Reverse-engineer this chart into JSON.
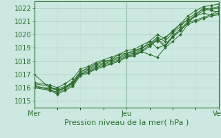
{
  "title": "",
  "xlabel": "Pression niveau de la mer( hPa )",
  "ylabel": "",
  "bg_color": "#cce8e0",
  "grid_color_major": "#a8cfc4",
  "grid_color_minor": "#bcddd6",
  "line_color": "#2d6e2d",
  "ylim": [
    1014.5,
    1022.5
  ],
  "yticks": [
    1015,
    1016,
    1017,
    1018,
    1019,
    1020,
    1021,
    1022
  ],
  "xtick_labels": [
    "Mer",
    "Jeu",
    "Ven"
  ],
  "xtick_pos": [
    0,
    48,
    96
  ],
  "x_total": 96,
  "series": [
    [
      0,
      1017.0,
      8,
      1016.0,
      12,
      1015.8,
      16,
      1016.0,
      20,
      1016.3,
      24,
      1017.2,
      28,
      1017.5,
      32,
      1017.8,
      36,
      1018.0,
      40,
      1018.1,
      44,
      1018.5,
      48,
      1018.6,
      52,
      1018.8,
      56,
      1019.0,
      60,
      1019.3,
      64,
      1019.5,
      68,
      1019.8,
      72,
      1020.2,
      76,
      1020.8,
      80,
      1021.1,
      84,
      1021.4,
      88,
      1021.6,
      92,
      1021.5,
      96,
      1021.6
    ],
    [
      0,
      1016.0,
      8,
      1016.0,
      12,
      1015.9,
      16,
      1016.1,
      20,
      1016.3,
      24,
      1017.0,
      28,
      1017.2,
      32,
      1017.4,
      36,
      1017.6,
      40,
      1017.8,
      44,
      1018.0,
      48,
      1018.3,
      52,
      1018.5,
      56,
      1018.7,
      60,
      1018.5,
      64,
      1018.3,
      68,
      1019.0,
      72,
      1019.5,
      76,
      1020.0,
      80,
      1020.8,
      84,
      1021.0,
      88,
      1021.2,
      92,
      1021.4,
      96,
      1021.5
    ],
    [
      0,
      1016.2,
      8,
      1015.8,
      12,
      1015.7,
      16,
      1016.0,
      20,
      1016.4,
      24,
      1017.1,
      28,
      1017.3,
      32,
      1017.6,
      36,
      1017.8,
      40,
      1018.0,
      44,
      1018.2,
      48,
      1018.5,
      52,
      1018.6,
      56,
      1018.9,
      60,
      1019.5,
      64,
      1019.0,
      68,
      1019.2,
      72,
      1019.8,
      76,
      1020.3,
      80,
      1020.9,
      84,
      1021.1,
      88,
      1021.3,
      92,
      1021.5,
      96,
      1021.8
    ],
    [
      0,
      1016.1,
      8,
      1015.9,
      12,
      1015.6,
      16,
      1015.9,
      20,
      1016.2,
      24,
      1017.0,
      28,
      1017.2,
      32,
      1017.5,
      36,
      1017.7,
      40,
      1017.9,
      44,
      1018.1,
      48,
      1018.4,
      52,
      1018.5,
      56,
      1018.8,
      60,
      1019.2,
      64,
      1019.7,
      68,
      1019.2,
      72,
      1019.9,
      76,
      1020.4,
      80,
      1021.0,
      84,
      1021.5,
      88,
      1022.0,
      92,
      1021.8,
      96,
      1021.7
    ],
    [
      0,
      1016.0,
      8,
      1015.8,
      12,
      1015.5,
      16,
      1015.8,
      20,
      1016.1,
      24,
      1016.9,
      28,
      1017.1,
      32,
      1017.4,
      36,
      1017.6,
      40,
      1017.8,
      44,
      1018.0,
      48,
      1018.3,
      52,
      1018.4,
      56,
      1018.7,
      60,
      1019.1,
      64,
      1019.6,
      68,
      1019.1,
      72,
      1019.8,
      76,
      1020.3,
      80,
      1020.9,
      84,
      1021.4,
      88,
      1021.8,
      92,
      1021.9,
      96,
      1022.0
    ],
    [
      0,
      1016.3,
      8,
      1016.1,
      12,
      1015.8,
      16,
      1016.0,
      20,
      1016.5,
      24,
      1017.2,
      28,
      1017.4,
      32,
      1017.7,
      36,
      1017.9,
      40,
      1018.1,
      44,
      1018.3,
      48,
      1018.6,
      52,
      1018.7,
      56,
      1019.0,
      60,
      1019.3,
      64,
      1019.8,
      68,
      1019.5,
      72,
      1020.1,
      76,
      1020.6,
      80,
      1021.2,
      84,
      1021.6,
      88,
      1021.9,
      92,
      1022.0,
      96,
      1022.1
    ],
    [
      0,
      1016.4,
      8,
      1016.2,
      12,
      1016.0,
      16,
      1016.3,
      20,
      1016.7,
      24,
      1017.4,
      28,
      1017.6,
      32,
      1017.9,
      36,
      1018.1,
      40,
      1018.3,
      44,
      1018.5,
      48,
      1018.8,
      52,
      1018.9,
      56,
      1019.2,
      60,
      1019.5,
      64,
      1020.0,
      68,
      1019.7,
      72,
      1020.3,
      76,
      1020.8,
      80,
      1021.4,
      84,
      1021.8,
      88,
      1022.1,
      92,
      1022.2,
      96,
      1022.3
    ]
  ],
  "marker": "D",
  "marker_size": 2.0,
  "line_width": 0.7,
  "vline_x": [
    0,
    48,
    96
  ],
  "xlabel_fontsize": 8,
  "tick_fontsize": 7
}
